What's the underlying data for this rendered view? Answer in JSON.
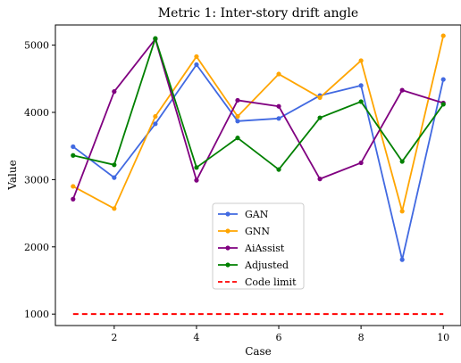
{
  "chart_data": {
    "type": "line",
    "title": "Metric 1: Inter-story drift angle",
    "xlabel": "Case",
    "ylabel": "Value",
    "xlim": [
      0.57,
      10.43
    ],
    "ylim": [
      830,
      5300
    ],
    "xticks": [
      2,
      4,
      6,
      8,
      10
    ],
    "yticks": [
      1000,
      2000,
      3000,
      4000,
      5000
    ],
    "grid": false,
    "legend_position": "lower-center",
    "x": [
      1,
      2,
      3,
      4,
      5,
      6,
      7,
      8,
      9,
      10
    ],
    "series": [
      {
        "name": "GAN",
        "color": "#4169e1",
        "values": [
          3490,
          3030,
          3830,
          4710,
          3870,
          3910,
          4250,
          4400,
          1810,
          4490
        ]
      },
      {
        "name": "GNN",
        "color": "#ffa500",
        "values": [
          2900,
          2570,
          3940,
          4830,
          3940,
          4570,
          4220,
          4770,
          2530,
          5140
        ]
      },
      {
        "name": "AiAssist",
        "color": "#800080",
        "values": [
          2710,
          4310,
          5090,
          2990,
          4180,
          4090,
          3010,
          3250,
          4330,
          4140
        ]
      },
      {
        "name": "Adjusted",
        "color": "#008000",
        "values": [
          3360,
          3220,
          5100,
          3180,
          3620,
          3150,
          3920,
          4160,
          3270,
          4120
        ]
      }
    ],
    "reference_line": {
      "name": "Code limit",
      "color": "#ff0000",
      "style": "dashed",
      "value": 1000,
      "x_range": [
        1,
        10
      ]
    }
  }
}
